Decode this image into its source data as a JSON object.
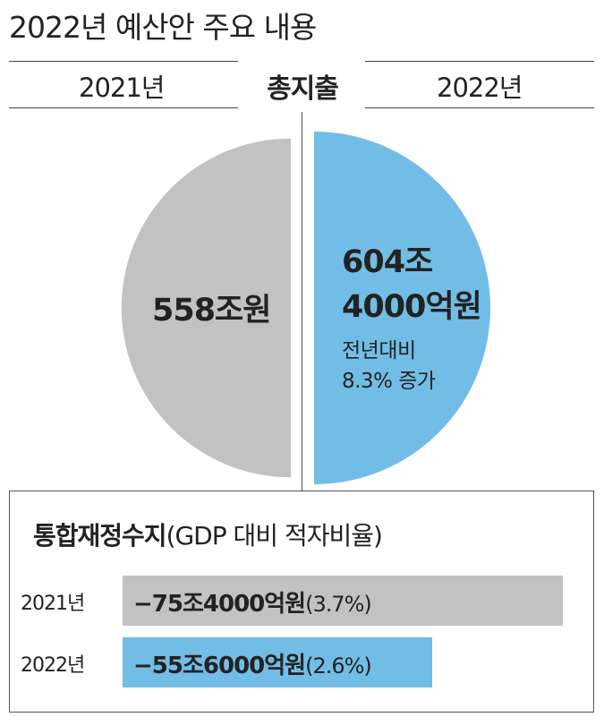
{
  "title": "2022년 예산안 주요 내용",
  "colors": {
    "gray": "#c2c2c2",
    "blue": "#72bde5"
  },
  "chart_data": [
    {
      "type": "pie",
      "title": "총지출",
      "categories": [
        "2021년",
        "2022년"
      ],
      "series": [
        {
          "name": "2021년",
          "value_label": "558조원",
          "value": 558
        },
        {
          "name": "2022년",
          "value_label": [
            "604조",
            "4000억원"
          ],
          "value": 604.4,
          "note": [
            "전년대비",
            "8.3% 증가"
          ]
        }
      ]
    },
    {
      "type": "bar",
      "title": "통합재정수지",
      "subtitle": "(GDP 대비 적자비율)",
      "categories": [
        "2021년",
        "2022년"
      ],
      "values": [
        -75.4,
        -55.6
      ],
      "value_labels": [
        "−75조4000억원",
        "−55조6000억원"
      ],
      "ratio_labels": [
        "(3.7%)",
        "(2.6%)"
      ],
      "ratios": [
        3.7,
        2.6
      ]
    }
  ]
}
